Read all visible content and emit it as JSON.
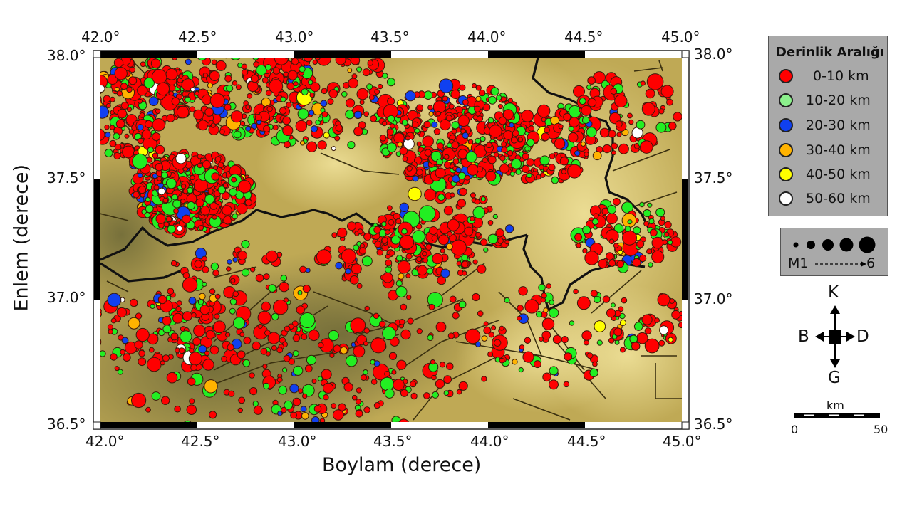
{
  "map": {
    "x_axis": {
      "title": "Boylam (derece)",
      "ticks": [
        "42.0°",
        "42.5°",
        "43.0°",
        "43.5°",
        "44.0°",
        "44.5°",
        "45.0°"
      ],
      "range": [
        42.0,
        45.0
      ]
    },
    "y_axis": {
      "title": "Enlem (derece)",
      "ticks": [
        "38.0°",
        "37.5°",
        "37.0°",
        "36.5°"
      ],
      "range": [
        36.5,
        38.0
      ]
    },
    "background_colors": {
      "lowland": "#8a7f3c",
      "highland": "#e8d680",
      "mid": "#c2ad55"
    },
    "border_color": "#111111",
    "fault_color": "#3a3010"
  },
  "legend": {
    "title": "Derinlik Aralığı",
    "items": [
      {
        "label": "0-10 km",
        "color": "#ff0000"
      },
      {
        "label": "10-20 km",
        "color": "#8cf08c"
      },
      {
        "label": "20-30 km",
        "color": "#1040f0"
      },
      {
        "label": "30-40 km",
        "color": "#ffb300"
      },
      {
        "label": "40-50 km",
        "color": "#ffff00"
      },
      {
        "label": "50-60 km",
        "color": "#ffffff"
      }
    ]
  },
  "magnitude_legend": {
    "start_label": "M1",
    "end_label": "6",
    "sizes": [
      1,
      2,
      3,
      4,
      5,
      6
    ]
  },
  "compass": {
    "north": "K",
    "south": "G",
    "west": "B",
    "east": "D"
  },
  "scale_bar": {
    "unit": "km",
    "start": "0",
    "end": "50"
  },
  "chart_data": {
    "type": "scatter",
    "title": "",
    "xlabel": "Boylam (derece)",
    "ylabel": "Enlem (derece)",
    "xlim": [
      42.0,
      45.0
    ],
    "ylim": [
      36.5,
      38.0
    ],
    "x_ticks": [
      "42.0°",
      "42.5°",
      "43.0°",
      "43.5°",
      "44.0°",
      "44.5°",
      "45.0°"
    ],
    "y_ticks": [
      "36.5°",
      "37.0°",
      "37.5°",
      "38.0°"
    ],
    "legend_title": "Derinlik Aralığı",
    "legend_position": "right",
    "grid": false,
    "series": [
      {
        "name": "0-10 km",
        "color": "#ff0000",
        "density": "dominant; dense clusters near (42.5,37.4) and (43.8,37.6)"
      },
      {
        "name": "10-20 km",
        "color": "#8cf08c",
        "density": "common; scattered throughout, more in east"
      },
      {
        "name": "20-30 km",
        "color": "#1040f0",
        "density": "occasional; concentrated near (43.8,37.7)"
      },
      {
        "name": "30-40 km",
        "color": "#ffb300",
        "density": "sparse; mostly in south"
      },
      {
        "name": "40-50 km",
        "color": "#ffff00",
        "density": "rare"
      },
      {
        "name": "50-60 km",
        "color": "#ffffff",
        "density": "rare"
      }
    ],
    "size_encoding": "magnitude M1 to 6"
  }
}
